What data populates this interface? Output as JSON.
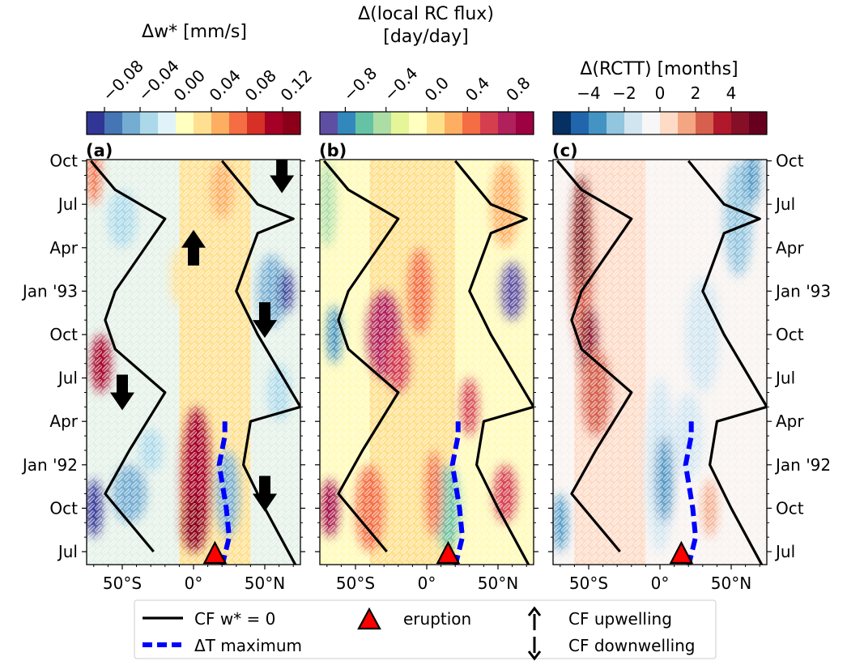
{
  "colors": {
    "w_cmap": [
      "#313695",
      "#4575b4",
      "#74add1",
      "#abd9e9",
      "#e0f3f8",
      "#ffffbf",
      "#fee090",
      "#fdae61",
      "#f46d43",
      "#d73027",
      "#a50026",
      "#8b0018"
    ],
    "flux_cmap": [
      "#5e4fa2",
      "#3288bd",
      "#66c2a5",
      "#abdda4",
      "#e6f598",
      "#ffffbf",
      "#fee08b",
      "#fdae61",
      "#f46d43",
      "#d53e4f",
      "#b0205a",
      "#9e0142"
    ],
    "rctt_cmap": [
      "#053061",
      "#2166ac",
      "#4393c3",
      "#92c5de",
      "#d1e5f0",
      "#f7f7f7",
      "#fddbc7",
      "#f4a582",
      "#d6604d",
      "#b2182b",
      "#850f26",
      "#67001f"
    ],
    "cf_line": "#000000",
    "dT_line": "#0000ff",
    "eruption": "#ff0000",
    "sig_contour": "#ffffff"
  },
  "time_ticks": [
    "Jul",
    "Oct",
    "Jan '92",
    "Apr",
    "Jul",
    "Oct",
    "Jan '93",
    "Apr",
    "Jul",
    "Oct"
  ],
  "lat_ticks": [
    "50°S",
    "0°",
    "50°N"
  ],
  "panels": [
    {
      "label": "(a)",
      "cbar_title": "Δw* [mm/s]",
      "cbar_ticks": [
        "−0.08",
        "−0.04",
        "0.00",
        "0.04",
        "0.08",
        "0.12"
      ]
    },
    {
      "label": "(b)",
      "cbar_title_line1": "Δ(local RC flux)",
      "cbar_title_line2": "[day/day]",
      "cbar_ticks": [
        "−0.8",
        "−0.4",
        "0.0",
        "0.4",
        "0.8"
      ]
    },
    {
      "label": "(c)",
      "cbar_title": "Δ(RCTT) [months]",
      "cbar_ticks": [
        "−4",
        "−2",
        "0",
        "2",
        "4"
      ]
    }
  ],
  "legend": {
    "cf_label": "CF w* = 0",
    "dT_label": "ΔT maximum",
    "eruption_label": "eruption",
    "up_label": "CF upwelling",
    "down_label": "CF downwelling"
  },
  "chart_data": [
    {
      "type": "heatmap",
      "panel": "(a)",
      "quantity": "Δw*",
      "units": "mm/s",
      "x_axis": "latitude (°)",
      "xlim": [
        -75,
        75
      ],
      "xticks": [
        -50,
        0,
        50
      ],
      "y_axis": "time",
      "ylim": [
        "1991-06",
        "1993-10"
      ],
      "colorbar_range": [
        -0.1,
        0.14
      ],
      "colorbar_ticks": [
        -0.08,
        -0.04,
        0.0,
        0.04,
        0.08,
        0.12
      ],
      "features": [
        {
          "lat": 2,
          "time": "1991-08 to 1992-04",
          "sign": "positive",
          "peak": 0.12
        },
        {
          "lat": 25,
          "time": "1991-08 to 1992-03",
          "sign": "negative",
          "peak": -0.06
        },
        {
          "lat": 60,
          "time": "1993-01",
          "sign": "negative",
          "peak": -0.08
        },
        {
          "lat": -65,
          "time": "1992-08",
          "sign": "positive",
          "peak": 0.1
        },
        {
          "lat": -68,
          "time": "1991-09",
          "sign": "negative",
          "peak": -0.08
        }
      ],
      "arrows": [
        {
          "lat": 62,
          "time": "1993-09",
          "direction": "down"
        },
        {
          "lat": 0,
          "time": "1993-04",
          "direction": "up"
        },
        {
          "lat": 50,
          "time": "1992-11",
          "direction": "down"
        },
        {
          "lat": -50,
          "time": "1992-06",
          "direction": "down"
        },
        {
          "lat": 50,
          "time": "1991-11",
          "direction": "down"
        }
      ]
    },
    {
      "type": "heatmap",
      "panel": "(b)",
      "quantity": "Δ(local RC flux)",
      "units": "day/day",
      "x_axis": "latitude (°)",
      "xlim": [
        -75,
        75
      ],
      "xticks": [
        -50,
        0,
        50
      ],
      "y_axis": "time",
      "ylim": [
        "1991-06",
        "1993-10"
      ],
      "colorbar_range": [
        -1.05,
        1.05
      ],
      "colorbar_ticks": [
        -0.8,
        -0.4,
        0.0,
        0.4,
        0.8
      ],
      "features": [
        {
          "lat": -30,
          "time": "1992-11",
          "sign": "positive",
          "peak": 0.8
        },
        {
          "lat": 15,
          "time": "1991-10",
          "sign": "negative",
          "peak": -0.8
        },
        {
          "lat": 60,
          "time": "1993-01",
          "sign": "negative",
          "peak": -1.0
        },
        {
          "lat": -68,
          "time": "1991-10",
          "sign": "positive",
          "peak": 1.0
        }
      ]
    },
    {
      "type": "heatmap",
      "panel": "(c)",
      "quantity": "Δ(RCTT)",
      "units": "months",
      "x_axis": "latitude (°)",
      "xlim": [
        -75,
        75
      ],
      "xticks": [
        -50,
        0,
        50
      ],
      "y_axis": "time",
      "ylim": [
        "1991-06",
        "1993-10"
      ],
      "colorbar_range": [
        -6,
        6
      ],
      "colorbar_ticks": [
        -4,
        -2,
        0,
        2,
        4
      ],
      "features": [
        {
          "lat": -55,
          "time": "1992-10 to 1993-08",
          "sign": "positive",
          "peak": 5.5
        },
        {
          "lat": 0,
          "time": "1991-08 to 1992-06",
          "sign": "negative",
          "peak": -4
        },
        {
          "lat": 55,
          "time": "1993-04 to 1993-10",
          "sign": "negative",
          "peak": -3
        }
      ]
    },
    {
      "type": "line",
      "name": "CF w* = 0",
      "x_axis": "latitude (°)",
      "y_axis": "time",
      "series": [
        {
          "branch": "south",
          "points": [
            [
              -72,
              "1993-10"
            ],
            [
              -55,
              "1993-08"
            ],
            [
              -20,
              "1993-06"
            ],
            [
              -55,
              "1993-01"
            ],
            [
              -62,
              "1992-11"
            ],
            [
              -55,
              "1992-09"
            ],
            [
              -20,
              "1992-06"
            ],
            [
              -45,
              "1992-02"
            ],
            [
              -62,
              "1991-11"
            ],
            [
              -28,
              "1991-07"
            ]
          ]
        },
        {
          "branch": "north",
          "points": [
            [
              20,
              "1993-10"
            ],
            [
              45,
              "1993-07"
            ],
            [
              70,
              "1993-06"
            ],
            [
              45,
              "1993-05"
            ],
            [
              30,
              "1993-01"
            ],
            [
              45,
              "1992-10"
            ],
            [
              75,
              "1992-05"
            ],
            [
              40,
              "1992-04"
            ],
            [
              35,
              "1992-01"
            ],
            [
              50,
              "1991-10"
            ],
            [
              72,
              "1991-06"
            ]
          ]
        }
      ]
    },
    {
      "type": "line",
      "name": "ΔT maximum",
      "x_axis": "latitude (°)",
      "y_axis": "time",
      "series": [
        {
          "points": [
            [
              20,
              "1991-06"
            ],
            [
              25,
              "1991-08"
            ],
            [
              23,
              "1991-10"
            ],
            [
              18,
              "1992-01"
            ],
            [
              22,
              "1992-03"
            ],
            [
              22,
              "1992-04"
            ]
          ]
        }
      ]
    },
    {
      "type": "scatter",
      "name": "eruption",
      "points": [
        {
          "lat": 15,
          "time": "1991-06"
        }
      ]
    }
  ]
}
